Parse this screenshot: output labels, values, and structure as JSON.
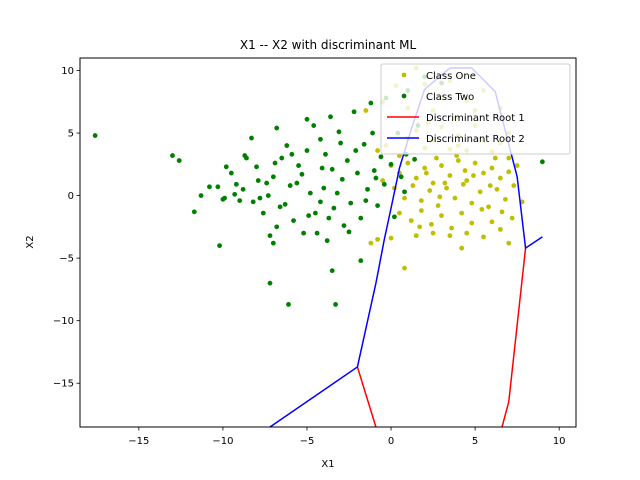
{
  "chart_data": {
    "type": "scatter",
    "title": "X1 -- X2 with discriminant ML",
    "xlabel": "X1",
    "ylabel": "X2",
    "xlim": [
      -18.5,
      11
    ],
    "ylim": [
      -18.5,
      11
    ],
    "xticks": [
      -15,
      -10,
      -5,
      0,
      5,
      10
    ],
    "yticks": [
      -15,
      -10,
      -5,
      0,
      5,
      10
    ],
    "grid": false,
    "legend_position": "top-right",
    "series": [
      {
        "name": "Class One",
        "kind": "points",
        "color": "#bfbf00",
        "points": [
          [
            -1.5,
            6.8
          ],
          [
            -0.5,
            7.5
          ],
          [
            0.3,
            8.8
          ],
          [
            1.5,
            10.2
          ],
          [
            2.0,
            8.9
          ],
          [
            2.5,
            6.8
          ],
          [
            3.0,
            7.8
          ],
          [
            3.5,
            9.2
          ],
          [
            4.5,
            7.6
          ],
          [
            5.5,
            8.4
          ],
          [
            6.5,
            7.0
          ],
          [
            7.0,
            5.0
          ],
          [
            -0.3,
            4.0
          ],
          [
            0.5,
            3.2
          ],
          [
            1.0,
            4.6
          ],
          [
            1.5,
            5.2
          ],
          [
            2.0,
            3.8
          ],
          [
            2.5,
            4.4
          ],
          [
            3.0,
            5.5
          ],
          [
            3.5,
            3.7
          ],
          [
            4.0,
            4.8
          ],
          [
            4.5,
            3.6
          ],
          [
            5.0,
            5.6
          ],
          [
            5.5,
            4.4
          ],
          [
            6.0,
            3.5
          ],
          [
            6.5,
            4.2
          ],
          [
            7.0,
            3.0
          ],
          [
            0.0,
            2.4
          ],
          [
            0.5,
            1.8
          ],
          [
            1.0,
            2.6
          ],
          [
            1.5,
            1.4
          ],
          [
            2.0,
            2.2
          ],
          [
            2.5,
            1.0
          ],
          [
            3.0,
            2.4
          ],
          [
            3.5,
            1.6
          ],
          [
            4.0,
            2.8
          ],
          [
            4.5,
            1.2
          ],
          [
            5.0,
            2.6
          ],
          [
            5.5,
            1.8
          ],
          [
            6.0,
            2.2
          ],
          [
            6.5,
            1.4
          ],
          [
            7.0,
            1.9
          ],
          [
            7.5,
            2.4
          ],
          [
            0.2,
            0.6
          ],
          [
            0.8,
            -0.2
          ],
          [
            1.3,
            0.8
          ],
          [
            1.8,
            -0.4
          ],
          [
            2.3,
            0.4
          ],
          [
            2.8,
            -0.8
          ],
          [
            3.3,
            0.6
          ],
          [
            3.8,
            -0.2
          ],
          [
            4.3,
            0.9
          ],
          [
            4.8,
            -0.6
          ],
          [
            5.3,
            0.3
          ],
          [
            5.8,
            -0.9
          ],
          [
            6.3,
            0.5
          ],
          [
            6.8,
            -0.3
          ],
          [
            7.3,
            0.8
          ],
          [
            7.8,
            -0.5
          ],
          [
            0.5,
            -1.4
          ],
          [
            1.2,
            -2.0
          ],
          [
            1.8,
            -1.2
          ],
          [
            2.4,
            -2.3
          ],
          [
            3.0,
            -1.6
          ],
          [
            3.6,
            -2.6
          ],
          [
            4.2,
            -1.4
          ],
          [
            4.8,
            -2.2
          ],
          [
            5.4,
            -1.1
          ],
          [
            6.0,
            -2.1
          ],
          [
            6.6,
            -1.3
          ],
          [
            7.2,
            -1.8
          ],
          [
            -0.8,
            -3.5
          ],
          [
            0.0,
            -3.4
          ],
          [
            1.5,
            -3.2
          ],
          [
            2.5,
            -3.0
          ],
          [
            3.5,
            -3.2
          ],
          [
            4.5,
            -3.0
          ],
          [
            5.5,
            -3.3
          ],
          [
            6.5,
            -2.7
          ],
          [
            7.0,
            -3.8
          ],
          [
            4.2,
            -4.2
          ],
          [
            0.8,
            -5.8
          ],
          [
            -1.2,
            -3.8
          ],
          [
            -0.5,
            1.2
          ],
          [
            -0.8,
            3.6
          ],
          [
            5.0,
            6.8
          ],
          [
            3.8,
            6.2
          ],
          [
            2.2,
            5.8
          ],
          [
            1.0,
            7.0
          ],
          [
            4.0,
            4.0
          ],
          [
            2.7,
            3.0
          ],
          [
            3.2,
            1.0
          ],
          [
            4.4,
            2.0
          ],
          [
            1.7,
            -2.5
          ],
          [
            2.9,
            -0.1
          ],
          [
            3.9,
            3.2
          ],
          [
            4.9,
            1.6
          ],
          [
            5.9,
            0.8
          ],
          [
            6.2,
            3.0
          ],
          [
            2.1,
            1.8
          ]
        ]
      },
      {
        "name": "Class Two",
        "kind": "points",
        "color": "#008000",
        "points": [
          [
            -17.6,
            4.8
          ],
          [
            -13.0,
            3.2
          ],
          [
            -12.6,
            2.8
          ],
          [
            -11.7,
            -1.3
          ],
          [
            -11.3,
            0.0
          ],
          [
            -10.8,
            0.7
          ],
          [
            -10.3,
            0.7
          ],
          [
            -10.0,
            -0.3
          ],
          [
            -10.2,
            -4.0
          ],
          [
            -9.8,
            2.3
          ],
          [
            -9.5,
            1.8
          ],
          [
            -9.2,
            0.9
          ],
          [
            -9.0,
            -0.4
          ],
          [
            -8.6,
            3.0
          ],
          [
            -8.3,
            4.6
          ],
          [
            -8.0,
            2.3
          ],
          [
            -7.6,
            -1.4
          ],
          [
            -7.3,
            0.0
          ],
          [
            -7.0,
            1.5
          ],
          [
            -7.2,
            -3.2
          ],
          [
            -7.0,
            -3.8
          ],
          [
            -6.8,
            5.4
          ],
          [
            -6.5,
            3.0
          ],
          [
            -6.2,
            4.0
          ],
          [
            -6.0,
            0.8
          ],
          [
            -5.8,
            -2.0
          ],
          [
            -5.5,
            2.4
          ],
          [
            -5.2,
            -3.0
          ],
          [
            -5.0,
            3.6
          ],
          [
            -4.8,
            0.2
          ],
          [
            -4.5,
            -1.4
          ],
          [
            -4.2,
            4.5
          ],
          [
            -4.0,
            0.6
          ],
          [
            -3.8,
            -3.6
          ],
          [
            -3.6,
            6.3
          ],
          [
            -3.5,
            2.1
          ],
          [
            -3.4,
            -1.0
          ],
          [
            -3.2,
            0.2
          ],
          [
            -3.0,
            4.2
          ],
          [
            -2.8,
            -2.4
          ],
          [
            -2.6,
            2.8
          ],
          [
            -2.4,
            -0.6
          ],
          [
            -2.2,
            6.7
          ],
          [
            -2.0,
            1.8
          ],
          [
            -1.8,
            -1.8
          ],
          [
            -1.6,
            4.1
          ],
          [
            -1.4,
            0.5
          ],
          [
            -1.2,
            7.4
          ],
          [
            -1.0,
            2.0
          ],
          [
            -0.8,
            -0.8
          ],
          [
            -0.6,
            3.1
          ],
          [
            -0.4,
            0.9
          ],
          [
            -0.3,
            7.8
          ],
          [
            0.0,
            2.5
          ],
          [
            0.2,
            -1.7
          ],
          [
            0.4,
            5.0
          ],
          [
            0.6,
            1.5
          ],
          [
            0.9,
            3.3
          ],
          [
            1.0,
            8.4
          ],
          [
            1.4,
            2.9
          ],
          [
            1.6,
            5.6
          ],
          [
            2.0,
            9.5
          ],
          [
            3.0,
            9.0
          ],
          [
            -5.0,
            6.1
          ],
          [
            -4.6,
            5.6
          ],
          [
            -3.9,
            3.3
          ],
          [
            -7.8,
            -0.2
          ],
          [
            -6.6,
            -0.9
          ],
          [
            -5.6,
            1.0
          ],
          [
            -8.8,
            0.5
          ],
          [
            -9.9,
            -0.2
          ],
          [
            -6.8,
            -2.5
          ],
          [
            -4.4,
            -3.0
          ],
          [
            -3.5,
            -6.0
          ],
          [
            -3.3,
            -8.7
          ],
          [
            -6.1,
            -8.7
          ],
          [
            -7.2,
            -7.0
          ],
          [
            -1.8,
            -5.2
          ],
          [
            -2.9,
            1.3
          ],
          [
            -4.2,
            -0.5
          ],
          [
            -5.3,
            1.7
          ],
          [
            -6.3,
            -0.7
          ],
          [
            -7.4,
            1.0
          ],
          [
            -8.2,
            -0.5
          ],
          [
            -9.3,
            0.1
          ],
          [
            -2.5,
            -2.9
          ],
          [
            -1.5,
            -0.4
          ],
          [
            -0.9,
            1.4
          ],
          [
            -3.7,
            -1.8
          ],
          [
            -4.9,
            -1.6
          ],
          [
            -5.9,
            3.3
          ],
          [
            -6.9,
            2.6
          ],
          [
            -7.9,
            1.2
          ],
          [
            -8.7,
            3.2
          ],
          [
            0.8,
            0.3
          ],
          [
            -1.1,
            5.0
          ],
          [
            -2.1,
            3.6
          ],
          [
            -3.1,
            5.1
          ],
          [
            -4.1,
            2.2
          ],
          [
            9.0,
            2.7
          ]
        ]
      },
      {
        "name": "Discriminant Root 1",
        "kind": "line",
        "color": "#ff0000",
        "points": [
          [
            -2.0,
            -13.7
          ],
          [
            -0.9,
            -18.5
          ]
        ]
      },
      {
        "name": "Discriminant Root 1",
        "kind": "line",
        "color": "#ff0000",
        "points": [
          [
            6.6,
            -18.5
          ],
          [
            7.0,
            -16.5
          ],
          [
            8.0,
            -4.2
          ]
        ]
      },
      {
        "name": "Discriminant Root 2",
        "kind": "line",
        "color": "#0000ff",
        "points": [
          [
            -7.2,
            -18.5
          ],
          [
            -2.0,
            -13.7
          ],
          [
            -0.9,
            -7.0
          ],
          [
            -0.4,
            -3.5
          ],
          [
            0.0,
            -1.0
          ],
          [
            0.5,
            2.2
          ],
          [
            1.2,
            5.3
          ],
          [
            2.0,
            8.5
          ],
          [
            3.5,
            10.2
          ],
          [
            4.8,
            10.2
          ],
          [
            6.2,
            8.3
          ],
          [
            7.5,
            1.5
          ],
          [
            8.0,
            -4.2
          ],
          [
            9.0,
            -3.3
          ]
        ]
      }
    ]
  }
}
